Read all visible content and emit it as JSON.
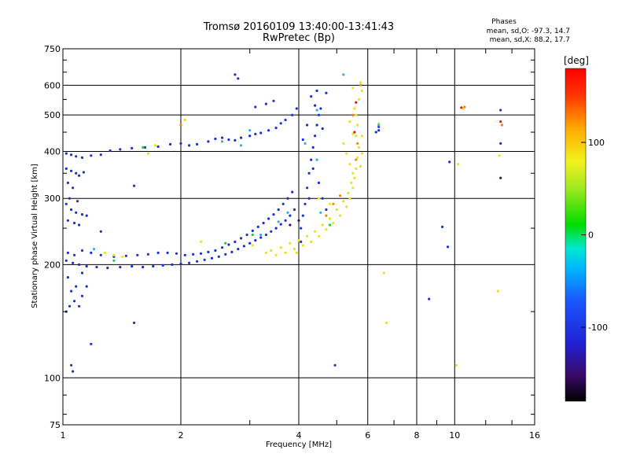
{
  "chart_data": {
    "type": "scatter",
    "title": "Tromsø 20160109 13:40:00-13:41:43",
    "subtitle": "RwPretec (Bp)",
    "phase_header": "Phases",
    "phase_stats": [
      "mean, sd,O: -97.3, 14.7",
      "mean, sd,X: 88.2, 17.7"
    ],
    "xlabel": "Frequency [MHz]",
    "ylabel": "Stationary phase Virtual Height [km]",
    "x_scale": "log",
    "y_scale": "log",
    "xlim": [
      1,
      16
    ],
    "ylim": [
      75,
      750
    ],
    "x_ticks": [
      1,
      2,
      4,
      6,
      8,
      10,
      16
    ],
    "y_ticks": [
      75,
      100,
      200,
      300,
      400,
      500,
      600,
      750
    ],
    "grid": true,
    "colorbar": {
      "label": "[deg]",
      "range": [
        -180,
        180
      ],
      "ticks": [
        100,
        0,
        -100
      ]
    },
    "series": [
      {
        "phase": -100,
        "color": "#1a2fd8",
        "points": [
          [
            1.02,
            395
          ],
          [
            1.05,
            392
          ],
          [
            1.08,
            388
          ],
          [
            1.12,
            385
          ],
          [
            1.18,
            390
          ],
          [
            1.25,
            392
          ],
          [
            1.32,
            402
          ],
          [
            1.4,
            405
          ],
          [
            1.5,
            408
          ],
          [
            1.62,
            410
          ],
          [
            1.75,
            412
          ],
          [
            1.88,
            418
          ],
          [
            2.0,
            420
          ],
          [
            2.1,
            415
          ],
          [
            2.2,
            418
          ],
          [
            2.35,
            425
          ],
          [
            2.45,
            432
          ],
          [
            2.55,
            435
          ],
          [
            2.65,
            430
          ],
          [
            2.75,
            428
          ],
          [
            2.85,
            435
          ],
          [
            3.0,
            440
          ],
          [
            3.1,
            445
          ],
          [
            3.2,
            448
          ],
          [
            3.35,
            455
          ],
          [
            3.5,
            462
          ],
          [
            3.6,
            475
          ],
          [
            3.7,
            485
          ],
          [
            3.85,
            500
          ],
          [
            3.95,
            520
          ],
          [
            3.3,
            535
          ],
          [
            3.45,
            545
          ],
          [
            3.1,
            525
          ],
          [
            2.8,
            625
          ],
          [
            2.75,
            640
          ],
          [
            1.02,
            360
          ],
          [
            1.05,
            355
          ],
          [
            1.08,
            350
          ],
          [
            1.1,
            345
          ],
          [
            1.13,
            352
          ],
          [
            1.03,
            330
          ],
          [
            1.06,
            320
          ],
          [
            1.02,
            290
          ],
          [
            1.05,
            280
          ],
          [
            1.08,
            275
          ],
          [
            1.12,
            272
          ],
          [
            1.15,
            270
          ],
          [
            1.03,
            262
          ],
          [
            1.07,
            258
          ],
          [
            1.1,
            255
          ],
          [
            1.04,
            300
          ],
          [
            1.09,
            295
          ],
          [
            1.02,
            205
          ],
          [
            1.06,
            202
          ],
          [
            1.1,
            200
          ],
          [
            1.15,
            198
          ],
          [
            1.22,
            197
          ],
          [
            1.3,
            196
          ],
          [
            1.4,
            197
          ],
          [
            1.5,
            198
          ],
          [
            1.6,
            197
          ],
          [
            1.7,
            198
          ],
          [
            1.8,
            199
          ],
          [
            1.9,
            200
          ],
          [
            2.0,
            201
          ],
          [
            2.1,
            202
          ],
          [
            2.2,
            204
          ],
          [
            2.3,
            206
          ],
          [
            2.4,
            208
          ],
          [
            2.5,
            210
          ],
          [
            2.6,
            213
          ],
          [
            2.7,
            216
          ],
          [
            2.8,
            220
          ],
          [
            2.9,
            224
          ],
          [
            3.0,
            228
          ],
          [
            3.1,
            232
          ],
          [
            3.2,
            236
          ],
          [
            3.3,
            240
          ],
          [
            3.4,
            245
          ],
          [
            3.5,
            250
          ],
          [
            3.6,
            256
          ],
          [
            3.7,
            262
          ],
          [
            3.8,
            270
          ],
          [
            3.9,
            280
          ],
          [
            1.03,
            215
          ],
          [
            1.07,
            212
          ],
          [
            1.12,
            218
          ],
          [
            1.18,
            215
          ],
          [
            1.25,
            212
          ],
          [
            1.35,
            210
          ],
          [
            1.45,
            211
          ],
          [
            1.55,
            212
          ],
          [
            1.65,
            213
          ],
          [
            1.75,
            215
          ],
          [
            1.85,
            215
          ],
          [
            1.95,
            214
          ],
          [
            2.05,
            212
          ],
          [
            2.15,
            213
          ],
          [
            2.25,
            214
          ],
          [
            2.35,
            216
          ],
          [
            2.45,
            218
          ],
          [
            2.55,
            222
          ],
          [
            2.65,
            226
          ],
          [
            2.75,
            230
          ],
          [
            2.85,
            235
          ],
          [
            2.95,
            240
          ],
          [
            3.05,
            246
          ],
          [
            3.15,
            252
          ],
          [
            3.25,
            258
          ],
          [
            3.35,
            265
          ],
          [
            3.45,
            272
          ],
          [
            3.55,
            280
          ],
          [
            3.65,
            290
          ],
          [
            3.75,
            300
          ],
          [
            3.85,
            312
          ],
          [
            1.03,
            185
          ],
          [
            1.05,
            170
          ],
          [
            1.07,
            160
          ],
          [
            1.1,
            155
          ],
          [
            1.12,
            165
          ],
          [
            1.08,
            175
          ],
          [
            1.02,
            150
          ],
          [
            1.04,
            155
          ],
          [
            1.15,
            175
          ],
          [
            1.12,
            190
          ],
          [
            1.05,
            108
          ],
          [
            1.06,
            104
          ],
          [
            1.18,
            123
          ],
          [
            1.52,
            140
          ],
          [
            1.52,
            324
          ],
          [
            1.25,
            245
          ],
          [
            4.05,
            250
          ],
          [
            4.1,
            270
          ],
          [
            4.15,
            290
          ],
          [
            4.2,
            320
          ],
          [
            4.25,
            350
          ],
          [
            4.3,
            380
          ],
          [
            4.35,
            410
          ],
          [
            4.4,
            440
          ],
          [
            4.45,
            470
          ],
          [
            4.5,
            500
          ],
          [
            4.4,
            530
          ],
          [
            4.3,
            560
          ],
          [
            4.45,
            580
          ],
          [
            4.55,
            520
          ],
          [
            4.6,
            460
          ],
          [
            4.1,
            430
          ],
          [
            4.2,
            470
          ],
          [
            4.35,
            360
          ],
          [
            4.5,
            330
          ],
          [
            4.6,
            300
          ],
          [
            4.7,
            280
          ],
          [
            4.25,
            300
          ],
          [
            4.05,
            230
          ],
          [
            4.7,
            572
          ],
          [
            4.95,
            108
          ],
          [
            6.4,
            465
          ],
          [
            6.4,
            455
          ],
          [
            6.3,
            450
          ],
          [
            8.6,
            162
          ],
          [
            9.3,
            252
          ],
          [
            9.6,
            223
          ],
          [
            13.1,
            515
          ],
          [
            13.1,
            420
          ],
          [
            9.7,
            375
          ]
        ]
      },
      {
        "phase": 100,
        "color": "#e6e619",
        "points": [
          [
            3.5,
            212
          ],
          [
            3.7,
            215
          ],
          [
            3.9,
            220
          ],
          [
            4.1,
            225
          ],
          [
            4.3,
            230
          ],
          [
            4.5,
            238
          ],
          [
            4.7,
            248
          ],
          [
            4.9,
            258
          ],
          [
            5.1,
            270
          ],
          [
            5.3,
            285
          ],
          [
            5.4,
            300
          ],
          [
            5.5,
            320
          ],
          [
            5.55,
            340
          ],
          [
            5.6,
            360
          ],
          [
            5.65,
            385
          ],
          [
            5.7,
            410
          ],
          [
            5.6,
            440
          ],
          [
            5.65,
            470
          ],
          [
            5.55,
            520
          ],
          [
            5.7,
            550
          ],
          [
            5.5,
            590
          ],
          [
            5.75,
            610
          ],
          [
            5.8,
            580
          ],
          [
            3.3,
            215
          ],
          [
            3.4,
            218
          ],
          [
            3.6,
            222
          ],
          [
            3.8,
            228
          ],
          [
            4.0,
            232
          ],
          [
            4.2,
            238
          ],
          [
            4.4,
            245
          ],
          [
            4.6,
            255
          ],
          [
            4.8,
            265
          ],
          [
            5.0,
            280
          ],
          [
            5.2,
            295
          ],
          [
            5.35,
            310
          ],
          [
            5.45,
            330
          ],
          [
            5.5,
            350
          ],
          [
            5.4,
            370
          ],
          [
            5.3,
            395
          ],
          [
            5.2,
            420
          ],
          [
            5.5,
            445
          ],
          [
            5.6,
            500
          ],
          [
            5.4,
            480
          ],
          [
            1.28,
            215
          ],
          [
            1.35,
            212
          ],
          [
            1.42,
            210
          ],
          [
            1.65,
            395
          ],
          [
            1.72,
            415
          ],
          [
            5.8,
            440
          ],
          [
            5.8,
            395
          ],
          [
            5.75,
            365
          ],
          [
            4.5,
            300
          ],
          [
            4.8,
            290
          ],
          [
            3.95,
            215
          ],
          [
            3.05,
            225
          ],
          [
            2.25,
            230
          ],
          [
            2.05,
            485
          ],
          [
            6.6,
            190
          ],
          [
            6.7,
            140
          ],
          [
            10.1,
            108
          ],
          [
            12.9,
            170
          ],
          [
            13.0,
            390
          ],
          [
            10.2,
            370
          ],
          [
            10.5,
            520
          ],
          [
            6.4,
            475
          ]
        ]
      },
      {
        "phase": 140,
        "color": "#ff7f00",
        "points": [
          [
            5.6,
            380
          ],
          [
            5.65,
            420
          ],
          [
            5.5,
            500
          ],
          [
            4.9,
            290
          ],
          [
            5.1,
            305
          ],
          [
            4.7,
            270
          ],
          [
            2.0,
            470
          ],
          [
            10.6,
            525
          ],
          [
            13.2,
            470
          ],
          [
            5.75,
            600
          ]
        ]
      },
      {
        "phase": 170,
        "color": "#ee1111",
        "points": [
          [
            5.55,
            450
          ],
          [
            5.6,
            540
          ],
          [
            13.1,
            480
          ],
          [
            10.4,
            523
          ]
        ]
      },
      {
        "phase": 30,
        "color": "#22cc44",
        "points": [
          [
            1.6,
            410
          ],
          [
            1.35,
            205
          ],
          [
            2.6,
            228
          ],
          [
            3.05,
            240
          ],
          [
            4.8,
            255
          ]
        ]
      },
      {
        "phase": -40,
        "color": "#2fb0e0",
        "points": [
          [
            2.85,
            415
          ],
          [
            3.2,
            240
          ],
          [
            3.55,
            260
          ],
          [
            3.75,
            275
          ],
          [
            2.55,
            425
          ],
          [
            1.2,
            220
          ],
          [
            4.15,
            420
          ],
          [
            4.45,
            380
          ],
          [
            3.0,
            455
          ],
          [
            4.55,
            275
          ],
          [
            5.2,
            640
          ],
          [
            6.4,
            470
          ],
          [
            4.45,
            515
          ]
        ]
      },
      {
        "phase": -150,
        "color": "#3d1060",
        "points": [
          [
            13.1,
            340
          ],
          [
            3.8,
            255
          ],
          [
            4.0,
            262
          ]
        ]
      }
    ]
  }
}
